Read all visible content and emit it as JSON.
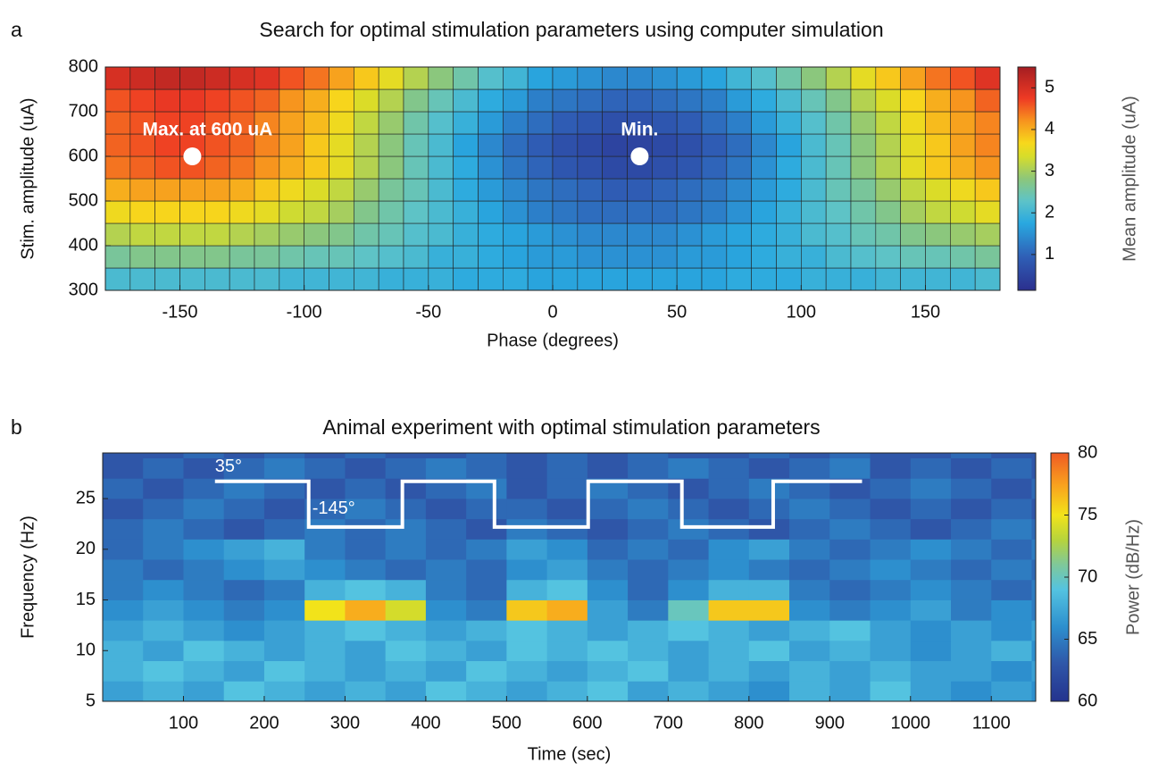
{
  "chart_data": [
    {
      "type": "heatmap",
      "panel_label": "a",
      "title": "Search for optimal stimulation parameters using computer simulation",
      "xlabel": "Phase (degrees)",
      "ylabel": "Stim. amplitude (uA)",
      "xlim": [
        -180,
        180
      ],
      "ylim": [
        300,
        800
      ],
      "xticks": [
        -150,
        -100,
        -50,
        0,
        50,
        100,
        150
      ],
      "yticks": [
        300,
        400,
        500,
        600,
        700,
        800
      ],
      "x": [
        -175,
        -165,
        -155,
        -145,
        -135,
        -125,
        -115,
        -105,
        -95,
        -85,
        -75,
        -65,
        -55,
        -45,
        -35,
        -25,
        -15,
        -5,
        5,
        15,
        25,
        35,
        45,
        55,
        65,
        75,
        85,
        95,
        105,
        115,
        125,
        135,
        145,
        155,
        165,
        175
      ],
      "y": [
        325,
        375,
        425,
        475,
        525,
        575,
        625,
        675,
        725,
        775
      ],
      "values": [
        [
          2.1,
          2.1,
          2.1,
          2.1,
          2.1,
          2.1,
          2.1,
          2.0,
          2.0,
          2.0,
          2.0,
          1.9,
          1.9,
          1.9,
          1.8,
          1.8,
          1.8,
          1.7,
          1.7,
          1.7,
          1.7,
          1.7,
          1.7,
          1.7,
          1.7,
          1.8,
          1.8,
          1.8,
          1.9,
          1.9,
          1.9,
          2.0,
          2.0,
          2.0,
          2.0,
          2.1
        ],
        [
          2.6,
          2.7,
          2.7,
          2.7,
          2.7,
          2.6,
          2.6,
          2.5,
          2.4,
          2.4,
          2.3,
          2.2,
          2.1,
          1.9,
          1.9,
          1.8,
          1.7,
          1.6,
          1.6,
          1.5,
          1.5,
          1.5,
          1.5,
          1.6,
          1.6,
          1.7,
          1.8,
          1.9,
          1.9,
          2.1,
          2.2,
          2.3,
          2.4,
          2.4,
          2.5,
          2.6
        ],
        [
          3.1,
          3.2,
          3.2,
          3.2,
          3.2,
          3.1,
          3.0,
          2.9,
          2.8,
          2.7,
          2.5,
          2.4,
          2.2,
          2.1,
          1.9,
          1.8,
          1.7,
          1.6,
          1.5,
          1.4,
          1.4,
          1.4,
          1.4,
          1.5,
          1.6,
          1.7,
          1.8,
          1.9,
          2.1,
          2.2,
          2.4,
          2.5,
          2.7,
          2.8,
          2.9,
          3.0
        ],
        [
          3.6,
          3.7,
          3.7,
          3.7,
          3.7,
          3.6,
          3.5,
          3.3,
          3.2,
          3.0,
          2.7,
          2.5,
          2.3,
          2.1,
          1.9,
          1.7,
          1.5,
          1.3,
          1.2,
          1.1,
          1.1,
          1.1,
          1.1,
          1.2,
          1.3,
          1.5,
          1.7,
          1.9,
          2.1,
          2.3,
          2.5,
          2.7,
          3.0,
          3.2,
          3.3,
          3.5
        ],
        [
          4.0,
          4.1,
          4.1,
          4.1,
          4.1,
          4.0,
          3.8,
          3.6,
          3.4,
          3.2,
          2.9,
          2.6,
          2.4,
          2.1,
          1.8,
          1.6,
          1.4,
          1.2,
          1.1,
          1.0,
          0.9,
          0.9,
          1.0,
          1.1,
          1.2,
          1.4,
          1.6,
          1.8,
          2.1,
          2.4,
          2.6,
          2.9,
          3.2,
          3.4,
          3.6,
          3.8
        ],
        [
          4.4,
          4.5,
          4.6,
          4.6,
          4.5,
          4.4,
          4.2,
          4.0,
          3.8,
          3.5,
          3.1,
          2.8,
          2.4,
          2.1,
          1.8,
          1.5,
          1.2,
          1.0,
          0.8,
          0.7,
          0.6,
          0.6,
          0.7,
          0.8,
          1.0,
          1.2,
          1.5,
          1.8,
          2.1,
          2.4,
          2.8,
          3.1,
          3.5,
          3.8,
          4.0,
          4.2
        ],
        [
          4.5,
          4.6,
          4.7,
          4.7,
          4.6,
          4.5,
          4.3,
          4.1,
          3.8,
          3.5,
          3.1,
          2.8,
          2.4,
          2.1,
          1.7,
          1.4,
          1.1,
          0.9,
          0.7,
          0.6,
          0.5,
          0.5,
          0.6,
          0.7,
          0.9,
          1.1,
          1.4,
          1.7,
          2.1,
          2.4,
          2.8,
          3.1,
          3.5,
          3.8,
          4.1,
          4.3
        ],
        [
          4.5,
          4.6,
          4.7,
          4.7,
          4.6,
          4.5,
          4.3,
          4.1,
          3.9,
          3.6,
          3.2,
          2.9,
          2.5,
          2.2,
          1.9,
          1.6,
          1.3,
          1.1,
          0.9,
          0.8,
          0.7,
          0.7,
          0.8,
          0.9,
          1.1,
          1.3,
          1.6,
          1.9,
          2.2,
          2.5,
          2.9,
          3.2,
          3.6,
          3.9,
          4.1,
          4.3
        ],
        [
          4.6,
          4.7,
          4.8,
          4.8,
          4.7,
          4.6,
          4.5,
          4.2,
          4.0,
          3.7,
          3.4,
          3.1,
          2.7,
          2.4,
          2.1,
          1.8,
          1.6,
          1.3,
          1.2,
          1.1,
          1.0,
          1.0,
          1.1,
          1.2,
          1.3,
          1.6,
          1.8,
          2.1,
          2.4,
          2.7,
          3.1,
          3.4,
          3.7,
          4.0,
          4.2,
          4.5
        ],
        [
          5.0,
          5.1,
          5.2,
          5.2,
          5.1,
          5.0,
          4.9,
          4.6,
          4.4,
          4.1,
          3.8,
          3.5,
          3.1,
          2.8,
          2.5,
          2.2,
          2.0,
          1.7,
          1.6,
          1.5,
          1.4,
          1.4,
          1.5,
          1.6,
          1.7,
          2.0,
          2.2,
          2.5,
          2.8,
          3.1,
          3.5,
          3.8,
          4.1,
          4.4,
          4.6,
          4.9
        ]
      ],
      "markers": [
        {
          "label": "Max. at 600 uA",
          "x": -145,
          "y": 600
        },
        {
          "label": "Min.",
          "x": 35,
          "y": 600
        }
      ],
      "colorbar": {
        "label": "Mean amplitude (uA)",
        "clim": [
          0.14,
          5.5
        ],
        "ticks": [
          1,
          2,
          3,
          4,
          5
        ]
      },
      "colormap": [
        {
          "stop": 0,
          "color": "#2b2f8e"
        },
        {
          "stop": 0.15,
          "color": "#2f5fb6"
        },
        {
          "stop": 0.3,
          "color": "#29a8e0"
        },
        {
          "stop": 0.4,
          "color": "#5dc3c8"
        },
        {
          "stop": 0.5,
          "color": "#8dc77a"
        },
        {
          "stop": 0.6,
          "color": "#d7dd2a"
        },
        {
          "stop": 0.66,
          "color": "#f7d81c"
        },
        {
          "stop": 0.76,
          "color": "#f7931e"
        },
        {
          "stop": 0.86,
          "color": "#ee3a24"
        },
        {
          "stop": 1,
          "color": "#a51d22"
        }
      ]
    },
    {
      "type": "spectrogram",
      "panel_label": "b",
      "title": "Animal experiment with optimal stimulation parameters",
      "xlabel": "Time (sec)",
      "ylabel": "Frequency (Hz)",
      "xlim": [
        0,
        1155
      ],
      "ylim": [
        5,
        29.5
      ],
      "xticks": [
        100,
        200,
        300,
        400,
        500,
        600,
        700,
        800,
        900,
        1000,
        1100
      ],
      "yticks": [
        5,
        10,
        15,
        20,
        25
      ],
      "x_edges": [
        0,
        50,
        100,
        150,
        200,
        250,
        300,
        350,
        400,
        450,
        500,
        550,
        600,
        650,
        700,
        750,
        800,
        850,
        900,
        950,
        1000,
        1050,
        1100,
        1150,
        1155
      ],
      "y_edges": [
        5,
        7,
        9,
        11,
        13,
        15,
        17,
        19,
        21,
        23,
        25,
        27,
        29,
        29.5
      ],
      "values": [
        [
          67,
          68,
          67,
          69,
          68,
          67,
          68,
          67,
          69,
          68,
          67,
          68,
          69,
          67,
          68,
          67,
          66,
          68,
          67,
          69,
          67,
          66,
          67,
          66
        ],
        [
          68,
          69,
          68,
          67,
          69,
          68,
          67,
          68,
          67,
          69,
          68,
          67,
          68,
          69,
          67,
          68,
          67,
          68,
          67,
          68,
          67,
          67,
          66,
          67
        ],
        [
          68,
          67,
          69,
          68,
          67,
          68,
          67,
          69,
          68,
          67,
          69,
          68,
          69,
          68,
          67,
          68,
          69,
          67,
          68,
          67,
          66,
          67,
          68,
          66
        ],
        [
          67,
          68,
          67,
          66,
          67,
          68,
          69,
          68,
          67,
          68,
          69,
          68,
          67,
          68,
          69,
          68,
          67,
          68,
          69,
          67,
          66,
          67,
          66,
          67
        ],
        [
          66,
          67,
          66,
          65,
          66,
          75,
          77,
          74,
          66,
          65,
          76,
          77,
          67,
          65,
          70,
          76,
          76,
          66,
          65,
          66,
          67,
          65,
          66,
          65
        ],
        [
          65,
          66,
          65,
          64,
          65,
          68,
          69,
          68,
          65,
          64,
          68,
          69,
          66,
          64,
          66,
          68,
          68,
          65,
          64,
          65,
          66,
          65,
          64,
          65
        ],
        [
          65,
          64,
          65,
          66,
          67,
          66,
          65,
          64,
          65,
          64,
          66,
          67,
          65,
          64,
          65,
          66,
          65,
          64,
          65,
          66,
          65,
          64,
          65,
          64
        ],
        [
          64,
          65,
          66,
          67,
          68,
          65,
          64,
          65,
          64,
          65,
          67,
          66,
          64,
          65,
          64,
          66,
          67,
          65,
          64,
          65,
          66,
          65,
          64,
          65
        ],
        [
          64,
          65,
          64,
          63,
          64,
          65,
          64,
          65,
          64,
          63,
          65,
          64,
          63,
          64,
          65,
          64,
          63,
          64,
          65,
          64,
          63,
          64,
          65,
          64
        ],
        [
          63,
          64,
          65,
          64,
          63,
          64,
          65,
          64,
          63,
          64,
          64,
          63,
          64,
          65,
          64,
          63,
          64,
          65,
          64,
          63,
          64,
          63,
          64,
          63
        ],
        [
          64,
          63,
          64,
          65,
          64,
          63,
          64,
          63,
          64,
          65,
          63,
          64,
          65,
          64,
          63,
          64,
          65,
          64,
          63,
          64,
          65,
          64,
          63,
          64
        ],
        [
          63,
          64,
          63,
          64,
          65,
          64,
          63,
          64,
          65,
          64,
          63,
          64,
          63,
          64,
          65,
          64,
          63,
          64,
          65,
          63,
          64,
          63,
          64,
          63
        ],
        [
          63,
          63,
          64,
          63,
          64,
          63,
          64,
          63,
          63,
          64,
          63,
          64,
          63,
          64,
          63,
          63,
          64,
          63,
          64,
          63,
          63,
          64,
          63,
          63
        ]
      ],
      "stim_line": {
        "color": "#ffffff",
        "x": [
          139,
          255,
          255,
          371,
          371,
          485,
          485,
          601,
          601,
          717,
          717,
          830,
          830,
          940
        ],
        "y": [
          26.7,
          26.7,
          22.2,
          22.2,
          26.7,
          26.7,
          22.2,
          22.2,
          26.7,
          26.7,
          22.2,
          22.2,
          26.7,
          26.7
        ],
        "labels": [
          "35°",
          "-145°"
        ]
      },
      "colorbar": {
        "label": "Power (dB/Hz)",
        "clim": [
          60,
          80
        ],
        "ticks": [
          60,
          65,
          70,
          75,
          80
        ]
      },
      "colormap": [
        {
          "stop": 0,
          "color": "#24338e"
        },
        {
          "stop": 0.15,
          "color": "#2f56a8"
        },
        {
          "stop": 0.3,
          "color": "#2d8fce"
        },
        {
          "stop": 0.45,
          "color": "#54c3e0"
        },
        {
          "stop": 0.55,
          "color": "#7fc89a"
        },
        {
          "stop": 0.65,
          "color": "#b6d43c"
        },
        {
          "stop": 0.75,
          "color": "#f2e31a"
        },
        {
          "stop": 0.87,
          "color": "#f9a21e"
        },
        {
          "stop": 1,
          "color": "#ef5a24"
        }
      ]
    }
  ]
}
